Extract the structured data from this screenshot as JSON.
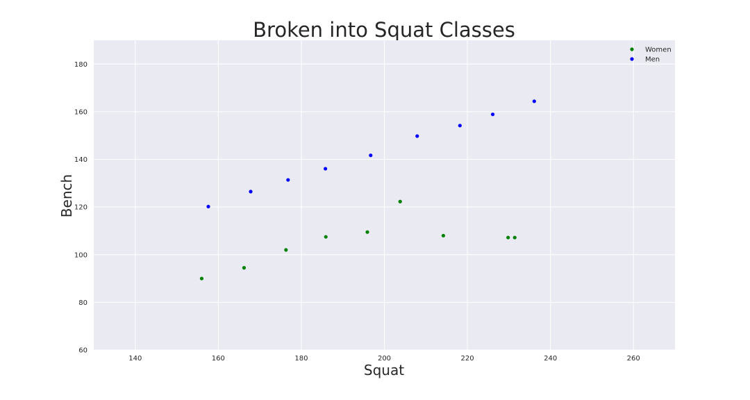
{
  "chart_data": {
    "type": "scatter",
    "title": "Broken into Squat Classes",
    "xlabel": "Squat",
    "ylabel": "Bench",
    "xlim": [
      130,
      270
    ],
    "ylim": [
      60,
      190
    ],
    "xticks": [
      140,
      160,
      180,
      200,
      220,
      240,
      260
    ],
    "yticks": [
      60,
      80,
      100,
      120,
      140,
      160,
      180
    ],
    "grid": true,
    "background_color": "#eaeaf2",
    "grid_color": "#ffffff",
    "legend_position": "top-right",
    "series": [
      {
        "name": "Women",
        "color": "#008000",
        "points": [
          [
            156,
            90
          ],
          [
            166.2,
            94.5
          ],
          [
            176.3,
            102
          ],
          [
            185.9,
            107.5
          ],
          [
            195.9,
            109.5
          ],
          [
            203.8,
            122.3
          ],
          [
            214.2,
            108
          ],
          [
            229.8,
            107.2
          ],
          [
            231.4,
            107.2
          ]
        ]
      },
      {
        "name": "Men",
        "color": "#0000ff",
        "points": [
          [
            157.6,
            120.2
          ],
          [
            167.8,
            126.5
          ],
          [
            176.8,
            131.4
          ],
          [
            185.8,
            136.1
          ],
          [
            196.7,
            141.7
          ],
          [
            207.9,
            149.8
          ],
          [
            218.2,
            154.2
          ],
          [
            226.1,
            158.9
          ],
          [
            236.1,
            164.4
          ]
        ]
      }
    ]
  }
}
